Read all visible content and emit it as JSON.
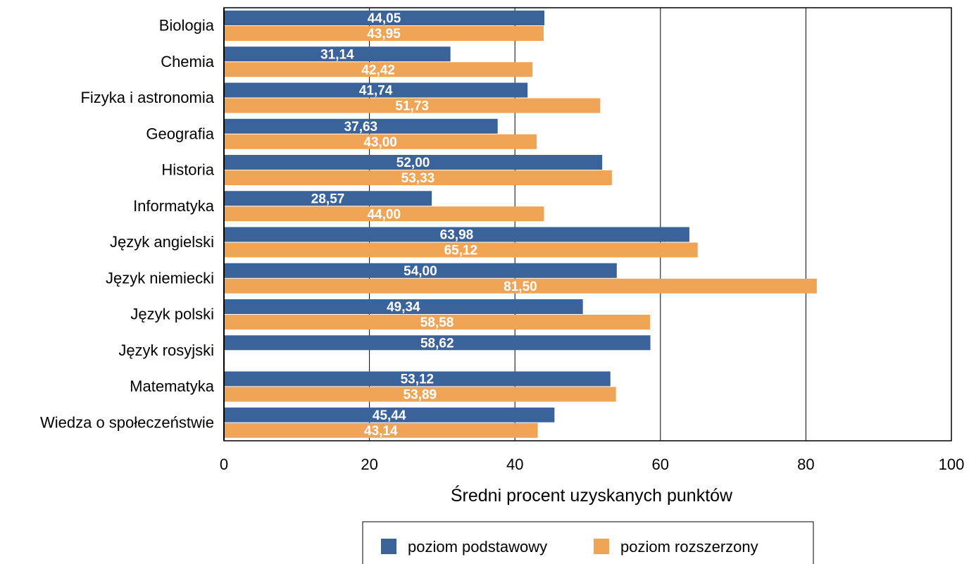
{
  "chart_data": {
    "type": "bar",
    "orientation": "horizontal",
    "categories": [
      "Biologia",
      "Chemia",
      "Fizyka i astronomia",
      "Geografia",
      "Historia",
      "Informatyka",
      "Język angielski",
      "Język niemiecki",
      "Język polski",
      "Język rosyjski",
      "Matematyka",
      "Wiedza o społeczeństwie"
    ],
    "series": [
      {
        "name": "poziom podstawowy",
        "color": "#3b639b",
        "values": [
          44.05,
          31.14,
          41.74,
          37.63,
          52.0,
          28.57,
          63.98,
          54.0,
          49.34,
          58.62,
          53.12,
          45.44
        ],
        "labels": [
          "44,05",
          "31,14",
          "41,74",
          "37,63",
          "52,00",
          "28,57",
          "63,98",
          "54,00",
          "49,34",
          "58,62",
          "53,12",
          "45,44"
        ]
      },
      {
        "name": "poziom rozszerzony",
        "color": "#f0a556",
        "values": [
          43.95,
          42.42,
          51.73,
          43.0,
          53.33,
          44.0,
          65.12,
          81.5,
          58.58,
          null,
          53.89,
          43.14
        ],
        "labels": [
          "43,95",
          "42,42",
          "51,73",
          "43,00",
          "53,33",
          "44,00",
          "65,12",
          "81,50",
          "58,58",
          "",
          "53,89",
          "43,14"
        ]
      }
    ],
    "xlabel": "Średni procent uzyskanych punktów",
    "xlim": [
      0,
      100
    ],
    "xticks": [
      0,
      20,
      40,
      60,
      80,
      100
    ],
    "xtick_labels": [
      "0",
      "20",
      "40",
      "60",
      "80",
      "100"
    ],
    "grid": "vertical",
    "legend_position": "bottom"
  }
}
